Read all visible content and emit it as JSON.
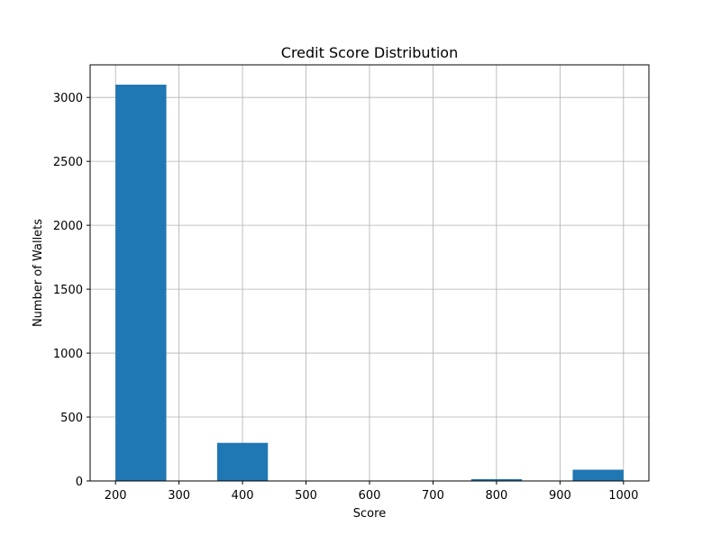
{
  "chart_data": {
    "type": "bar",
    "title": "Credit Score Distribution",
    "xlabel": "Score",
    "ylabel": "Number of Wallets",
    "xlim": [
      160,
      1040
    ],
    "ylim": [
      0,
      3255
    ],
    "grid": true,
    "bar_color": "#1f77b4",
    "bins": [
      {
        "start": 200,
        "end": 280,
        "value": 3100
      },
      {
        "start": 280,
        "end": 360,
        "value": 0
      },
      {
        "start": 360,
        "end": 440,
        "value": 298
      },
      {
        "start": 440,
        "end": 520,
        "value": 0
      },
      {
        "start": 520,
        "end": 600,
        "value": 0
      },
      {
        "start": 600,
        "end": 680,
        "value": 0
      },
      {
        "start": 680,
        "end": 760,
        "value": 0
      },
      {
        "start": 760,
        "end": 840,
        "value": 14
      },
      {
        "start": 840,
        "end": 920,
        "value": 0
      },
      {
        "start": 920,
        "end": 1000,
        "value": 88
      }
    ],
    "x_ticks": [
      200,
      300,
      400,
      500,
      600,
      700,
      800,
      900,
      1000
    ],
    "x_tick_labels": [
      "200",
      "300",
      "400",
      "500",
      "600",
      "700",
      "800",
      "900",
      "1000"
    ],
    "y_ticks": [
      0,
      500,
      1000,
      1500,
      2000,
      2500,
      3000
    ],
    "y_tick_labels": [
      "0",
      "500",
      "1000",
      "1500",
      "2000",
      "2500",
      "3000"
    ]
  }
}
